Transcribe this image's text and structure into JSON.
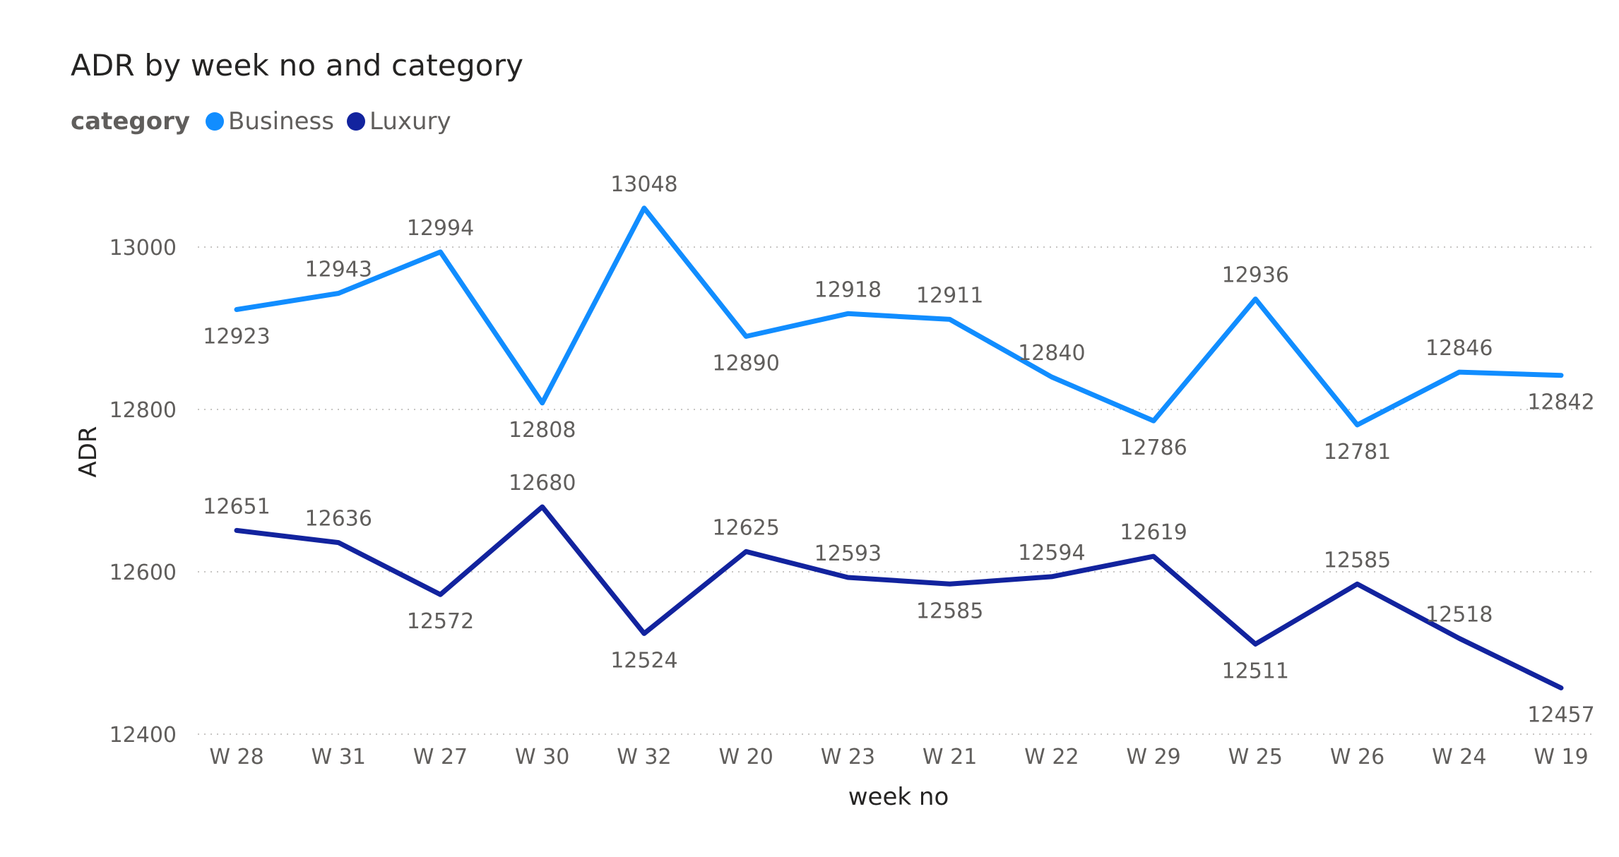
{
  "chart_data": {
    "type": "line",
    "title": "ADR by week no and category",
    "legend_title": "category",
    "legend_position": "top-left",
    "xlabel": "week no",
    "ylabel": "ADR",
    "ylim": [
      12400,
      13070
    ],
    "yticks": [
      12400,
      12600,
      12800,
      13000
    ],
    "grid": true,
    "categories": [
      "W 28",
      "W 31",
      "W 27",
      "W 30",
      "W 32",
      "W 20",
      "W 23",
      "W 21",
      "W 22",
      "W 29",
      "W 25",
      "W 26",
      "W 24",
      "W 19"
    ],
    "series": [
      {
        "name": "Business",
        "color": "#118dff",
        "values": [
          12923,
          12943,
          12994,
          12808,
          13048,
          12890,
          12918,
          12911,
          12840,
          12786,
          12936,
          12781,
          12846,
          12842
        ],
        "label_positions": [
          "below",
          "above",
          "above",
          "below",
          "above",
          "below",
          "above",
          "above",
          "above",
          "below",
          "above",
          "below",
          "above",
          "below"
        ]
      },
      {
        "name": "Luxury",
        "color": "#12239e",
        "values": [
          12651,
          12636,
          12572,
          12680,
          12524,
          12625,
          12593,
          12585,
          12594,
          12619,
          12511,
          12585,
          12518,
          12457
        ],
        "label_positions": [
          "above",
          "above",
          "below",
          "above",
          "below",
          "above",
          "above",
          "below",
          "above",
          "above",
          "below",
          "above",
          "above",
          "below"
        ]
      }
    ]
  }
}
